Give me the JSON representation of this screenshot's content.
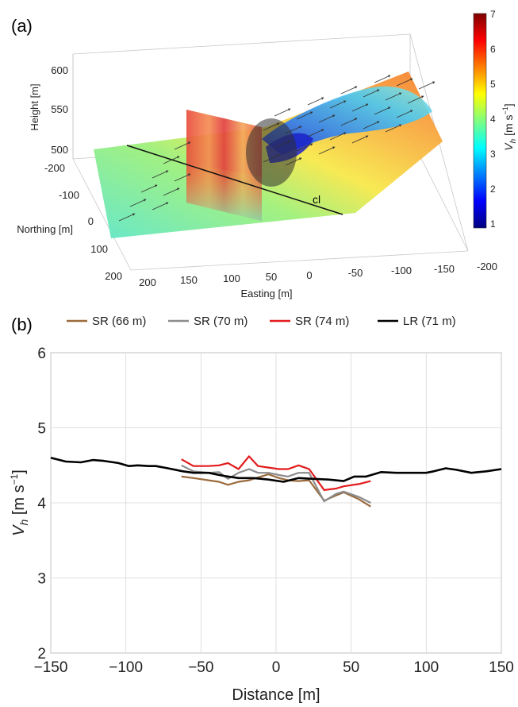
{
  "panel_a": {
    "label": "(a)",
    "axes": {
      "zlabel": "Height [m]",
      "ylabel": "Northing [m]",
      "xlabel": "Easting [m]",
      "z_ticks": [
        "600",
        "550",
        "500"
      ],
      "y_ticks": [
        "-200",
        "-100",
        "0",
        "100",
        "200"
      ],
      "x_ticks": [
        "200",
        "150",
        "100",
        "50",
        "0",
        "-50",
        "-100",
        "-150",
        "-200"
      ]
    },
    "centerline_label": "cl",
    "colorbar": {
      "label_main": "V",
      "label_sub": "h",
      "label_unit": " [m s",
      "label_exp": "−1",
      "label_close": "]",
      "ticks": [
        "7",
        "6",
        "5",
        "4",
        "3",
        "2",
        "1"
      ],
      "range": [
        1,
        7
      ],
      "colormap": [
        "#00007f",
        "#0000ff",
        "#007fff",
        "#00ffff",
        "#7fff7f",
        "#ffff00",
        "#ff7f00",
        "#ff0000",
        "#7f0000"
      ]
    }
  },
  "panel_b": {
    "label": "(b)"
  },
  "chart_data": {
    "type": "line",
    "xlabel": "Distance [m]",
    "ylabel_main": "V",
    "ylabel_sub": "h",
    "ylabel_unit": " [m s",
    "ylabel_exp": "−1",
    "ylabel_close": "]",
    "xlim": [
      -150,
      150
    ],
    "ylim": [
      2,
      6
    ],
    "xticks": [
      -150,
      -100,
      -50,
      0,
      50,
      100,
      150
    ],
    "xtick_labels": [
      "−150",
      "−100",
      "−50",
      "0",
      "50",
      "100",
      "150"
    ],
    "yticks": [
      2,
      3,
      4,
      5,
      6
    ],
    "ytick_labels": [
      "2",
      "3",
      "4",
      "5",
      "6"
    ],
    "grid": true,
    "legend_position": "top",
    "series": [
      {
        "name": "SR (66 m)",
        "color": "#9a6a3c",
        "x": [
          -63,
          -55,
          -45,
          -38,
          -32,
          -25,
          -18,
          -12,
          -5,
          2,
          8,
          15,
          22,
          32,
          40,
          45,
          55,
          63
        ],
        "y": [
          4.35,
          4.33,
          4.3,
          4.28,
          4.24,
          4.28,
          4.3,
          4.34,
          4.38,
          4.33,
          4.3,
          4.29,
          4.3,
          4.03,
          4.1,
          4.14,
          4.05,
          3.95
        ]
      },
      {
        "name": "SR (70 m)",
        "color": "#8c8c8c",
        "x": [
          -63,
          -55,
          -45,
          -38,
          -32,
          -25,
          -18,
          -12,
          -5,
          2,
          8,
          15,
          22,
          32,
          40,
          45,
          55,
          63
        ],
        "y": [
          4.5,
          4.42,
          4.4,
          4.41,
          4.32,
          4.4,
          4.45,
          4.4,
          4.4,
          4.37,
          4.35,
          4.4,
          4.4,
          4.02,
          4.12,
          4.15,
          4.08,
          4.0
        ]
      },
      {
        "name": "SR (74 m)",
        "color": "#e31a1c",
        "x": [
          -63,
          -55,
          -45,
          -38,
          -32,
          -25,
          -18,
          -12,
          -5,
          2,
          8,
          15,
          22,
          32,
          40,
          45,
          55,
          63
        ],
        "y": [
          4.58,
          4.49,
          4.49,
          4.5,
          4.53,
          4.45,
          4.62,
          4.49,
          4.47,
          4.45,
          4.45,
          4.5,
          4.45,
          4.17,
          4.19,
          4.22,
          4.25,
          4.29
        ]
      },
      {
        "name": "LR (71 m)",
        "color": "#000000",
        "x": [
          -150,
          -140,
          -130,
          -122,
          -115,
          -105,
          -98,
          -92,
          -85,
          -80,
          -72,
          -62,
          -55,
          -45,
          -35,
          -25,
          -15,
          -5,
          5,
          15,
          25,
          35,
          45,
          52,
          60,
          70,
          80,
          90,
          100,
          105,
          113,
          120,
          130,
          140,
          150
        ],
        "y": [
          4.6,
          4.55,
          4.54,
          4.57,
          4.56,
          4.53,
          4.49,
          4.5,
          4.49,
          4.49,
          4.46,
          4.42,
          4.4,
          4.4,
          4.36,
          4.33,
          4.33,
          4.31,
          4.28,
          4.33,
          4.32,
          4.31,
          4.29,
          4.35,
          4.35,
          4.41,
          4.4,
          4.4,
          4.4,
          4.42,
          4.46,
          4.44,
          4.4,
          4.42,
          4.45
        ]
      }
    ]
  }
}
